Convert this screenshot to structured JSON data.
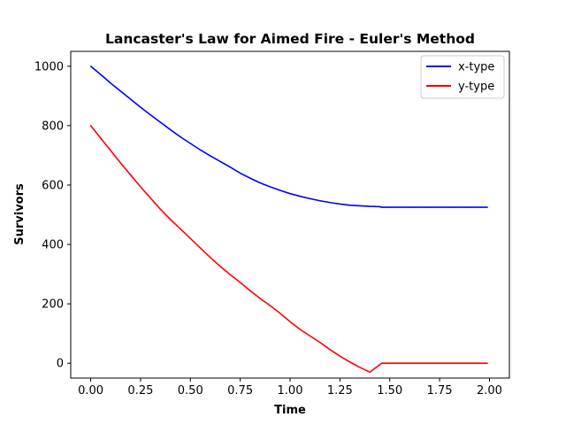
{
  "chart_data": {
    "type": "line",
    "title": "Lancaster's Law for Aimed Fire - Euler's Method",
    "xlabel": "Time",
    "ylabel": "Survivors",
    "xlim": [
      -0.1,
      2.1
    ],
    "ylim": [
      -50,
      1050
    ],
    "x_ticks": [
      0.0,
      0.25,
      0.5,
      0.75,
      1.0,
      1.25,
      1.5,
      1.75,
      2.0
    ],
    "x_tick_labels": [
      "0.00",
      "0.25",
      "0.50",
      "0.75",
      "1.00",
      "1.25",
      "1.50",
      "1.75",
      "2.00"
    ],
    "y_ticks": [
      0,
      200,
      400,
      600,
      800,
      1000
    ],
    "y_tick_labels": [
      "0",
      "200",
      "400",
      "600",
      "800",
      "1000"
    ],
    "grid": false,
    "legend_position": "top-right",
    "series": [
      {
        "name": "x-type",
        "color": "#0000ff",
        "x": [
          0.0,
          0.05,
          0.1,
          0.15,
          0.2,
          0.25,
          0.3,
          0.35,
          0.4,
          0.45,
          0.5,
          0.55,
          0.6,
          0.65,
          0.7,
          0.75,
          0.8,
          0.85,
          0.9,
          0.95,
          1.0,
          1.05,
          1.1,
          1.15,
          1.2,
          1.25,
          1.3,
          1.35,
          1.4,
          1.45,
          1.46,
          1.5,
          1.6,
          1.7,
          1.8,
          1.9,
          1.99
        ],
        "y": [
          1000,
          972,
          943,
          916,
          889,
          862,
          836,
          811,
          786,
          762,
          740,
          718,
          698,
          679,
          660,
          640,
          623,
          607,
          594,
          582,
          571,
          562,
          554,
          547,
          541,
          536,
          532,
          530,
          528,
          527,
          525,
          525,
          525,
          525,
          525,
          525,
          525
        ]
      },
      {
        "name": "y-type",
        "color": "#ff0000",
        "x": [
          0.0,
          0.05,
          0.1,
          0.15,
          0.2,
          0.25,
          0.3,
          0.35,
          0.4,
          0.45,
          0.5,
          0.55,
          0.6,
          0.65,
          0.7,
          0.75,
          0.8,
          0.85,
          0.9,
          0.95,
          1.0,
          1.05,
          1.1,
          1.15,
          1.2,
          1.25,
          1.3,
          1.35,
          1.4,
          1.46,
          1.5,
          1.6,
          1.7,
          1.8,
          1.9,
          1.99
        ],
        "y": [
          800,
          758,
          716,
          674,
          634,
          594,
          556,
          518,
          484,
          452,
          420,
          388,
          356,
          326,
          298,
          272,
          244,
          218,
          194,
          168,
          140,
          114,
          92,
          70,
          46,
          24,
          4,
          -14,
          -30,
          0,
          0,
          0,
          0,
          0,
          0,
          0
        ]
      }
    ]
  }
}
